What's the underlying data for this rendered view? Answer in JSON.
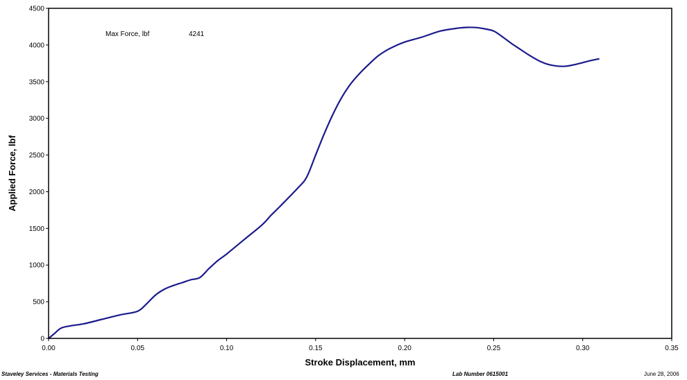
{
  "chart_data": {
    "type": "line",
    "title": "",
    "xlabel": "Stroke Displacement, mm",
    "ylabel": "Applied Force, lbf",
    "xlim": [
      0,
      0.35
    ],
    "ylim": [
      0,
      4500
    ],
    "x_ticks": [
      "0.00",
      "0.05",
      "0.10",
      "0.15",
      "0.20",
      "0.25",
      "0.30",
      "0.35"
    ],
    "y_ticks": [
      "0",
      "500",
      "1000",
      "1500",
      "2000",
      "2500",
      "3000",
      "3500",
      "4000",
      "4500"
    ],
    "grid": false,
    "line_color": "#1a1a8c",
    "annotation": {
      "label": "Max Force, lbf",
      "value": "4241"
    },
    "series": [
      {
        "x": [
          0.0,
          0.003,
          0.007,
          0.012,
          0.02,
          0.03,
          0.04,
          0.05,
          0.055,
          0.06,
          0.065,
          0.07,
          0.075,
          0.08,
          0.085,
          0.09,
          0.095,
          0.1,
          0.11,
          0.12,
          0.125,
          0.13,
          0.14,
          0.145,
          0.15,
          0.155,
          0.16,
          0.165,
          0.17,
          0.175,
          0.18,
          0.185,
          0.19,
          0.195,
          0.2,
          0.21,
          0.22,
          0.23,
          0.235,
          0.24,
          0.245,
          0.25,
          0.255,
          0.26,
          0.265,
          0.27,
          0.275,
          0.28,
          0.285,
          0.29,
          0.295,
          0.3,
          0.305,
          0.309
        ],
        "y": [
          0,
          60,
          140,
          170,
          200,
          260,
          320,
          370,
          470,
          590,
          670,
          720,
          760,
          800,
          830,
          950,
          1060,
          1150,
          1350,
          1550,
          1680,
          1800,
          2050,
          2200,
          2500,
          2800,
          3070,
          3300,
          3480,
          3620,
          3740,
          3850,
          3930,
          3990,
          4040,
          4110,
          4190,
          4230,
          4240,
          4238,
          4220,
          4190,
          4110,
          4020,
          3940,
          3860,
          3790,
          3740,
          3715,
          3710,
          3730,
          3760,
          3790,
          3810
        ]
      }
    ]
  },
  "footer": {
    "company": "Staveley Services - Materials Testing",
    "lab_number": "Lab Number  0615001",
    "date": "June 28, 2006"
  }
}
